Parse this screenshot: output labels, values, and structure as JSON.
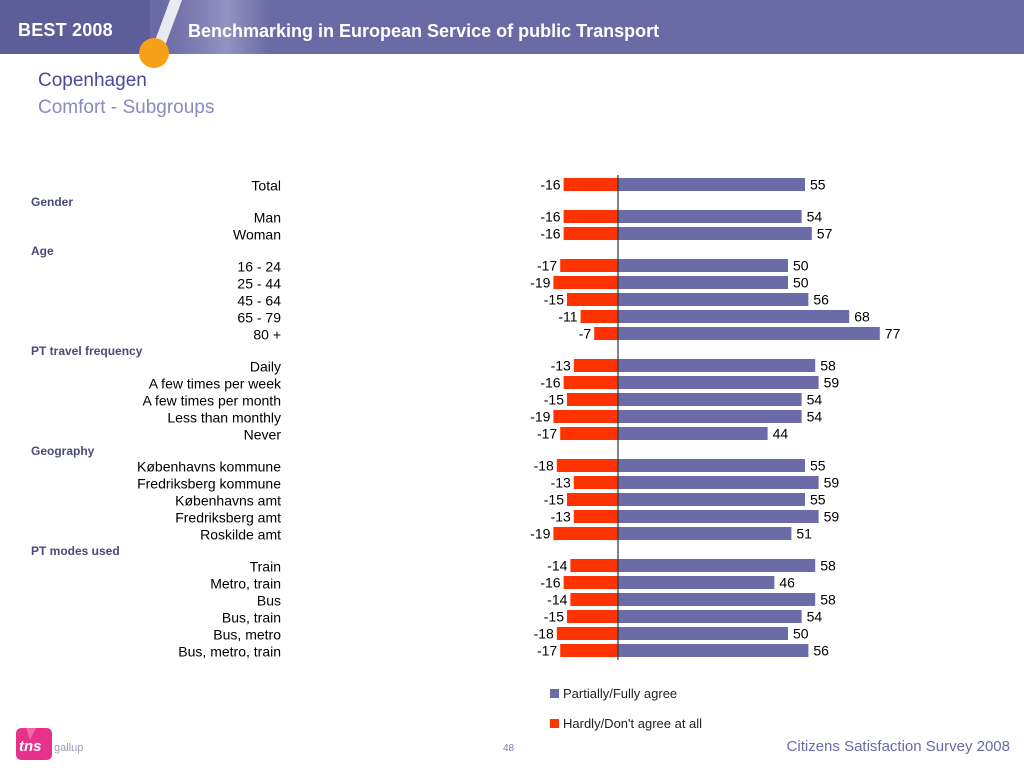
{
  "header": {
    "badge": "BEST 2008",
    "title": "Benchmarking in European Service of public Transport"
  },
  "slide": {
    "title": "Copenhagen",
    "subtitle": "Comfort - Subgroups"
  },
  "footer": {
    "logo": "tns",
    "logo_suffix": "gallup",
    "page_number": "48",
    "survey": "Citizens Satisfaction Survey 2008"
  },
  "colors": {
    "agree": "#6b6ba8",
    "disagree": "#ff3300",
    "group_label": "#4a4a7a"
  },
  "chart_data": {
    "type": "bar",
    "orientation": "horizontal-diverging",
    "title": "",
    "series": [
      {
        "name": "Partially/Fully agree",
        "color": "#6b6ba8"
      },
      {
        "name": "Hardly/Don't agree at all",
        "color": "#ff3300"
      }
    ],
    "legend_position": "bottom",
    "rows": [
      {
        "group": "",
        "label": "Total",
        "agree": 55,
        "disagree": -16
      },
      {
        "group": "Gender",
        "label": "Man",
        "agree": 54,
        "disagree": -16
      },
      {
        "group": "Gender",
        "label": "Woman",
        "agree": 57,
        "disagree": -16
      },
      {
        "group": "Age",
        "label": "16 - 24",
        "agree": 50,
        "disagree": -17
      },
      {
        "group": "Age",
        "label": "25 - 44",
        "agree": 50,
        "disagree": -19
      },
      {
        "group": "Age",
        "label": "45 - 64",
        "agree": 56,
        "disagree": -15
      },
      {
        "group": "Age",
        "label": "65 - 79",
        "agree": 68,
        "disagree": -11
      },
      {
        "group": "Age",
        "label": "80 +",
        "agree": 77,
        "disagree": -7
      },
      {
        "group": "PT travel frequency",
        "label": "Daily",
        "agree": 58,
        "disagree": -13
      },
      {
        "group": "PT travel frequency",
        "label": "A few times per week",
        "agree": 59,
        "disagree": -16
      },
      {
        "group": "PT travel frequency",
        "label": "A few times per month",
        "agree": 54,
        "disagree": -15
      },
      {
        "group": "PT travel frequency",
        "label": "Less than monthly",
        "agree": 54,
        "disagree": -19
      },
      {
        "group": "PT travel frequency",
        "label": "Never",
        "agree": 44,
        "disagree": -17
      },
      {
        "group": "Geography",
        "label": "Københavns kommune",
        "agree": 55,
        "disagree": -18
      },
      {
        "group": "Geography",
        "label": "Fredriksberg kommune",
        "agree": 59,
        "disagree": -13
      },
      {
        "group": "Geography",
        "label": "Københavns amt",
        "agree": 55,
        "disagree": -15
      },
      {
        "group": "Geography",
        "label": "Fredriksberg amt",
        "agree": 59,
        "disagree": -13
      },
      {
        "group": "Geography",
        "label": "Roskilde amt",
        "agree": 51,
        "disagree": -19
      },
      {
        "group": "PT modes used",
        "label": "Train",
        "agree": 58,
        "disagree": -14
      },
      {
        "group": "PT modes used",
        "label": "Metro, train",
        "agree": 46,
        "disagree": -16
      },
      {
        "group": "PT modes used",
        "label": "Bus",
        "agree": 58,
        "disagree": -14
      },
      {
        "group": "PT modes used",
        "label": "Bus, train",
        "agree": 54,
        "disagree": -15
      },
      {
        "group": "PT modes used",
        "label": "Bus, metro",
        "agree": 50,
        "disagree": -18
      },
      {
        "group": "PT modes used",
        "label": "Bus, metro, train",
        "agree": 56,
        "disagree": -17
      }
    ]
  }
}
